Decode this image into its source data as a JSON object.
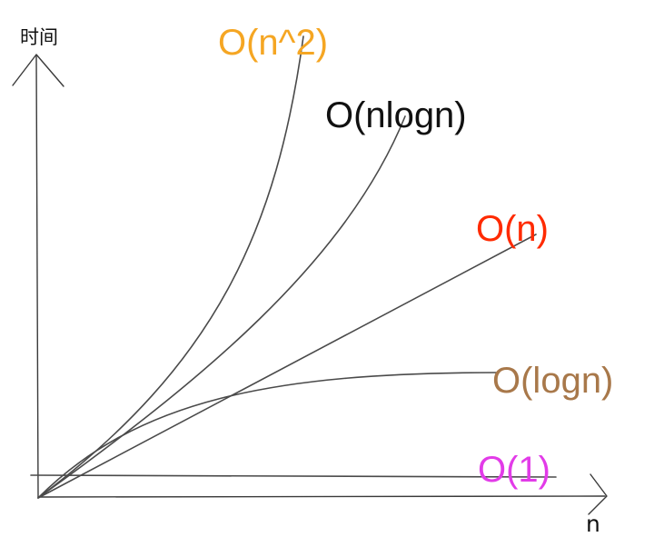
{
  "axes": {
    "y_label": "时间",
    "x_label": "n"
  },
  "curves": [
    {
      "label": "O(n^2)",
      "color": "#F5A623"
    },
    {
      "label": "O(nlogn)",
      "color": "#111111"
    },
    {
      "label": "O(n)",
      "color": "#FF2A00"
    },
    {
      "label": "O(logn)",
      "color": "#A8784A"
    },
    {
      "label": "O(1)",
      "color": "#E23BE8"
    }
  ]
}
